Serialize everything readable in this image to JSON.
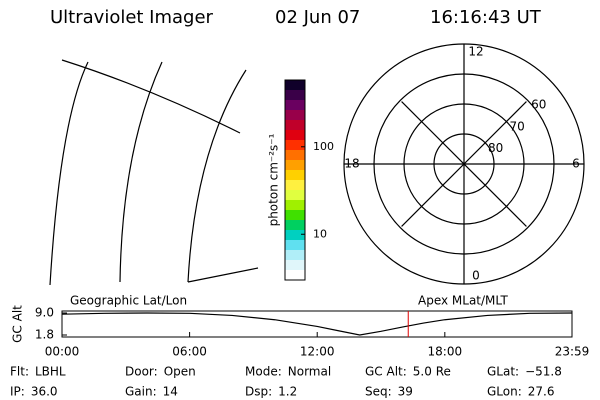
{
  "header": {
    "instrument": "Ultraviolet Imager",
    "date": "02 Jun 07",
    "time": "16:16:43 UT"
  },
  "colorbar": {
    "label": "photon cm⁻²s⁻¹",
    "log": true,
    "lim": [
      3,
      580
    ],
    "ticks": [
      10,
      100
    ],
    "colors": [
      "#10002a",
      "#3a0048",
      "#6a0060",
      "#98004a",
      "#c0002a",
      "#e00010",
      "#ff3000",
      "#ff7000",
      "#ffa000",
      "#ffd000",
      "#fff040",
      "#e0ff40",
      "#a0f000",
      "#40e000",
      "#00d060",
      "#00d0c0",
      "#60e0f0",
      "#b0eef8",
      "#e0f6fa",
      "#ffffff"
    ]
  },
  "polar": {
    "lat_labels": [
      80,
      70,
      60
    ],
    "rim_lat": 50,
    "mlt_labels": [
      12,
      18,
      6,
      0
    ]
  },
  "altitude": {
    "ylabel": "GC Alt",
    "left_label": "Geographic Lat/Lon",
    "right_label": "Apex MLat/MLT",
    "xlim": [
      0,
      23.98
    ],
    "ylim": [
      1.15,
      9.65
    ],
    "xticks": [
      {
        "value": 0,
        "label": "00:00"
      },
      {
        "value": 6,
        "label": "06:00"
      },
      {
        "value": 12,
        "label": "12:00"
      },
      {
        "value": 18,
        "label": "18:00"
      },
      {
        "value": 23.98,
        "label": "23:59"
      }
    ],
    "yticks": [
      {
        "value": 9,
        "label": "9.0"
      },
      {
        "value": 1.8,
        "label": "1.8"
      }
    ],
    "x": [
      0,
      2,
      4,
      6,
      8,
      10,
      12,
      13,
      14,
      15,
      16,
      17,
      18,
      20,
      22,
      23.98
    ],
    "values": [
      8.6,
      8.9,
      9.0,
      8.9,
      8.2,
      6.8,
      4.6,
      3.2,
      1.8,
      3.0,
      4.4,
      5.7,
      6.8,
      8.2,
      8.9,
      9.0
    ],
    "marker": 16.28,
    "marker_color": "#e00000"
  },
  "info": [
    [
      {
        "label": "Flt:",
        "value": "LBHL"
      },
      {
        "label": "Door:",
        "value": "Open"
      },
      {
        "label": "Mode:",
        "value": "Normal"
      },
      {
        "label": "GC Alt:",
        "value": "5.0 Re"
      },
      {
        "label": "GLat:",
        "value": "−51.8"
      }
    ],
    [
      {
        "label": "IP:",
        "value": "36.0"
      },
      {
        "label": "Gain:",
        "value": "14"
      },
      {
        "label": "Dsp:",
        "value": "1.2"
      },
      {
        "label": "Seq:",
        "value": "39"
      },
      {
        "label": "GLon:",
        "value": "27.6"
      }
    ]
  ]
}
